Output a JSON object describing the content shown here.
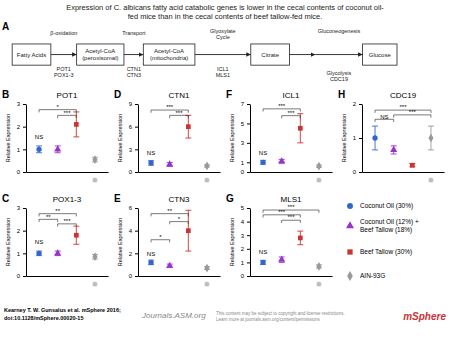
{
  "chart_data": {
    "type": "scatter",
    "title": "Expression of C. albicans fatty acid catabolic genes is lower in the cecal contents of coconut oil-\nfed mice than in the cecal contents of beef tallow-fed mice.",
    "series": [
      {
        "name": "Coconut Oil (30%)",
        "color": "#3366cc",
        "marker": "circle"
      },
      {
        "name": "Coconut Oil (12%) +\nBeef Tallow (18%)",
        "color": "#9933cc",
        "marker": "triangle"
      },
      {
        "name": "Beef Tallow (30%)",
        "color": "#cc3333",
        "marker": "square"
      },
      {
        "name": "AIN-93G",
        "color": "#999999",
        "marker": "diamond"
      }
    ],
    "legend": "lower-right",
    "panels": [
      {
        "label": "B",
        "title": "POT1",
        "ylabel": "Relative Expression",
        "categories": [
          null,
          null,
          null,
          null
        ],
        "values": [
          1.0,
          1.0,
          2.1,
          0.55
        ],
        "errors": [
          0.15,
          0.15,
          0.55,
          0.1
        ],
        "ylim": [
          0,
          3
        ],
        "yticks": [
          0,
          1,
          2,
          3
        ],
        "sig_bars": [
          {
            "x1": 0,
            "x2": 0,
            "y_top": 1.45,
            "label": "NS"
          },
          {
            "x1": 0,
            "x2": 2,
            "y_top": 2.75,
            "label": "*"
          },
          {
            "x1": 1,
            "x2": 2,
            "y_top": 2.5,
            "label": "***"
          }
        ],
        "annotations": [
          "❅"
        ]
      },
      {
        "label": "C",
        "title": "POX1-3",
        "ylabel": "Relative Expression",
        "categories": [
          null,
          null,
          null,
          null
        ],
        "values": [
          1.0,
          1.0,
          1.8,
          0.85
        ],
        "errors": [
          0.1,
          0.1,
          0.4,
          0.1
        ],
        "ylim": [
          0,
          3
        ],
        "yticks": [
          0,
          1,
          2,
          3
        ],
        "sig_bars": [
          {
            "x1": 0,
            "x2": 0,
            "y_top": 1.4,
            "label": "NS"
          },
          {
            "x1": 0,
            "x2": 1,
            "y_top": 2.5,
            "label": "**"
          },
          {
            "x1": 0,
            "x2": 2,
            "y_top": 2.75,
            "label": "**"
          },
          {
            "x1": 1,
            "x2": 2,
            "y_top": 2.3,
            "label": "***"
          }
        ],
        "annotations": [
          "❅"
        ]
      },
      {
        "label": "D",
        "title": "CTN1",
        "ylabel": "Relative Expression",
        "categories": [
          null,
          null,
          null,
          null
        ],
        "values": [
          1.2,
          1.0,
          6.0,
          0.8
        ],
        "errors": [
          0.3,
          0.25,
          1.5,
          0.15
        ],
        "ylim": [
          0,
          9
        ],
        "yticks": [
          0,
          3,
          6,
          9
        ],
        "sig_bars": [
          {
            "x1": 0,
            "x2": 0,
            "y_top": 2.2,
            "label": "NS"
          },
          {
            "x1": 0,
            "x2": 2,
            "y_top": 8.2,
            "label": "***"
          },
          {
            "x1": 1,
            "x2": 2,
            "y_top": 7.5,
            "label": "***"
          }
        ],
        "annotations": [
          "❅"
        ]
      },
      {
        "label": "E",
        "title": "CTN3",
        "ylabel": "Relative Expression",
        "categories": [
          null,
          null,
          null,
          null
        ],
        "values": [
          1.2,
          0.9,
          4.0,
          0.7
        ],
        "errors": [
          0.2,
          0.15,
          1.8,
          0.12
        ],
        "ylim": [
          0,
          6
        ],
        "yticks": [
          0,
          2,
          4,
          6
        ],
        "sig_bars": [
          {
            "x1": 0,
            "x2": 0,
            "y_top": 1.8,
            "label": "NS"
          },
          {
            "x1": 0,
            "x2": 1,
            "y_top": 3.2,
            "label": "*"
          },
          {
            "x1": 0,
            "x2": 2,
            "y_top": 5.5,
            "label": "**"
          },
          {
            "x1": 1,
            "x2": 2,
            "y_top": 4.8,
            "label": "*"
          }
        ],
        "annotations": [
          "❅"
        ]
      },
      {
        "label": "F",
        "title": "ICL1",
        "ylabel": "Relative Expression",
        "categories": [
          null,
          null,
          null,
          null
        ],
        "values": [
          1.0,
          1.1,
          4.5,
          0.6
        ],
        "errors": [
          0.2,
          0.2,
          1.5,
          0.12
        ],
        "ylim": [
          0,
          7
        ],
        "yticks": [
          0,
          1,
          3,
          5,
          7
        ],
        "sig_bars": [
          {
            "x1": 0,
            "x2": 0,
            "y_top": 1.7,
            "label": "NS"
          },
          {
            "x1": 0,
            "x2": 2,
            "y_top": 6.5,
            "label": "***"
          },
          {
            "x1": 1,
            "x2": 2,
            "y_top": 5.8,
            "label": "***"
          }
        ],
        "annotations": [
          "❅"
        ]
      },
      {
        "label": "G",
        "title": "MLS1",
        "ylabel": "Relative Expression",
        "categories": [
          null,
          null,
          null,
          null
        ],
        "values": [
          1.0,
          1.2,
          2.8,
          0.7
        ],
        "errors": [
          0.15,
          0.2,
          0.5,
          0.12
        ],
        "ylim": [
          0,
          5
        ],
        "yticks": [
          0,
          1,
          2,
          3,
          4,
          5
        ],
        "sig_bars": [
          {
            "x1": 0,
            "x2": 0,
            "y_top": 1.6,
            "label": "NS"
          },
          {
            "x1": 0,
            "x2": 2,
            "y_top": 4.5,
            "label": "***"
          },
          {
            "x1": 0,
            "x2": 3,
            "y_top": 4.85,
            "label": "***"
          },
          {
            "x1": 1,
            "x2": 2,
            "y_top": 4.1,
            "label": "***"
          }
        ],
        "annotations": [
          "❅"
        ]
      },
      {
        "label": "H",
        "title": "CDC19",
        "ylabel": "Relative Expression",
        "categories": [
          null,
          null,
          null,
          null
        ],
        "values": [
          1.0,
          0.65,
          0.2,
          1.0
        ],
        "errors": [
          0.35,
          0.12,
          0.05,
          0.35
        ],
        "ylim": [
          0,
          2
        ],
        "yticks": [
          0,
          1,
          2
        ],
        "sig_bars": [
          {
            "x1": 0,
            "x2": 1,
            "y_top": 1.55,
            "label": "NS"
          },
          {
            "x1": 0,
            "x2": 3,
            "y_top": 1.82,
            "label": "***"
          },
          {
            "x1": 1,
            "x2": 3,
            "y_top": 1.68,
            "label": "***"
          }
        ],
        "annotations": [
          "❅"
        ]
      }
    ],
    "diagram": {
      "label": "A",
      "nodes": [
        "Fatty Acids",
        "Acetyl-CoA\n(peroxisomal)",
        "Acetyl-CoA\n(mitochondria)",
        "Citrate",
        "Glucose"
      ],
      "steps": [
        {
          "label": "β-oxidation",
          "genes": "POT1\nPOX1-3"
        },
        {
          "label": "Transport",
          "genes": "CTN1\nCTN3"
        },
        {
          "label": "Glyoxylate\nCycle",
          "genes": "ICL1\nMLS1"
        },
        {
          "label": "Gluconeogenesis",
          "genes": "Glycolysis\nCDC19"
        }
      ]
    },
    "annotations": [
      "Kearney T. W. Gunsalus et al. mSphere 2016;",
      "doi:10.1128/mSphere.00020-15",
      "Journals.ASM.org",
      "This content may be subject to copyright and license restrictions.\nLearn more at journals.asm.org/content/permissions",
      "mSphere"
    ]
  }
}
